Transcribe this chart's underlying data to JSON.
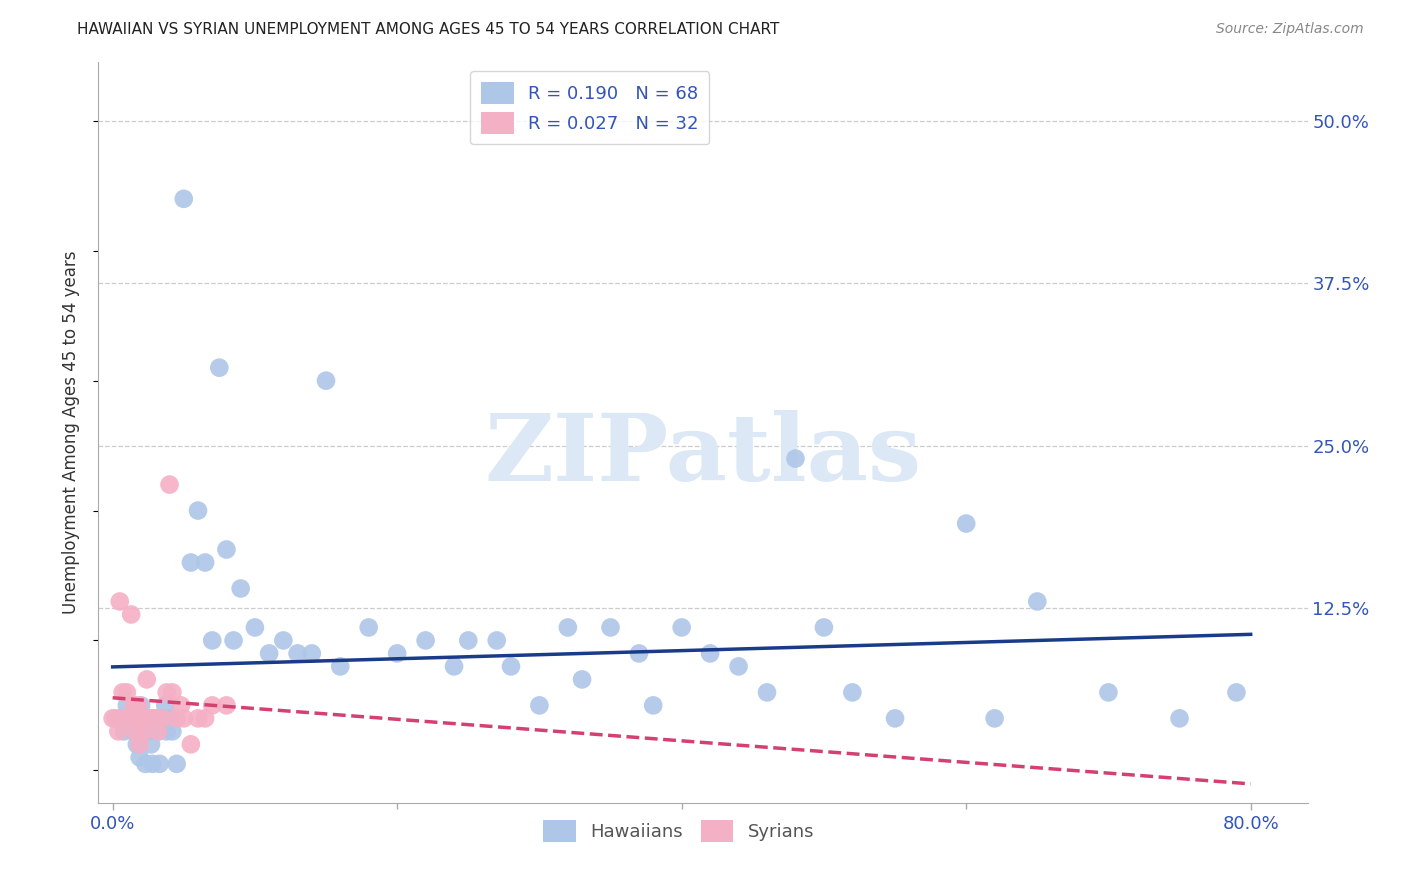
{
  "title": "HAWAIIAN VS SYRIAN UNEMPLOYMENT AMONG AGES 45 TO 54 YEARS CORRELATION CHART",
  "source": "Source: ZipAtlas.com",
  "ylabel": "Unemployment Among Ages 45 to 54 years",
  "ytick_labels": [
    "50.0%",
    "37.5%",
    "25.0%",
    "12.5%"
  ],
  "ytick_values": [
    0.5,
    0.375,
    0.25,
    0.125
  ],
  "xtick_labels": [
    "0.0%",
    "80.0%"
  ],
  "xtick_values": [
    0.0,
    0.8
  ],
  "xlim": [
    -0.01,
    0.84
  ],
  "ylim": [
    -0.025,
    0.545
  ],
  "hawaiian_R": 0.19,
  "hawaiian_N": 68,
  "syrian_R": 0.027,
  "syrian_N": 32,
  "hawaiian_color": "#aec6e8",
  "hawaiian_line_color": "#1a3a8a",
  "syrian_color": "#f4b0c4",
  "syrian_line_color": "#d44070",
  "watermark_text": "ZIPatlas",
  "watermark_color": "#dce8f5",
  "background_color": "#ffffff",
  "legend_text_color": "#3355bb",
  "hawaiian_x": [
    0.005,
    0.008,
    0.01,
    0.012,
    0.015,
    0.017,
    0.018,
    0.019,
    0.02,
    0.021,
    0.022,
    0.023,
    0.025,
    0.026,
    0.027,
    0.028,
    0.03,
    0.032,
    0.033,
    0.035,
    0.037,
    0.038,
    0.04,
    0.042,
    0.045,
    0.05,
    0.055,
    0.06,
    0.065,
    0.07,
    0.075,
    0.08,
    0.085,
    0.09,
    0.1,
    0.11,
    0.12,
    0.13,
    0.14,
    0.15,
    0.16,
    0.18,
    0.2,
    0.22,
    0.24,
    0.25,
    0.27,
    0.28,
    0.3,
    0.32,
    0.33,
    0.35,
    0.37,
    0.38,
    0.4,
    0.42,
    0.44,
    0.46,
    0.48,
    0.5,
    0.52,
    0.55,
    0.6,
    0.62,
    0.65,
    0.7,
    0.75,
    0.79
  ],
  "hawaiian_y": [
    0.04,
    0.03,
    0.05,
    0.04,
    0.03,
    0.02,
    0.045,
    0.01,
    0.05,
    0.04,
    0.03,
    0.005,
    0.04,
    0.03,
    0.02,
    0.005,
    0.04,
    0.03,
    0.005,
    0.04,
    0.05,
    0.03,
    0.04,
    0.03,
    0.005,
    0.44,
    0.16,
    0.2,
    0.16,
    0.1,
    0.31,
    0.17,
    0.1,
    0.14,
    0.11,
    0.09,
    0.1,
    0.09,
    0.09,
    0.3,
    0.08,
    0.11,
    0.09,
    0.1,
    0.08,
    0.1,
    0.1,
    0.08,
    0.05,
    0.11,
    0.07,
    0.11,
    0.09,
    0.05,
    0.11,
    0.09,
    0.08,
    0.06,
    0.24,
    0.11,
    0.06,
    0.04,
    0.19,
    0.04,
    0.13,
    0.06,
    0.04,
    0.06
  ],
  "syrian_x": [
    0.0,
    0.002,
    0.004,
    0.005,
    0.007,
    0.008,
    0.01,
    0.012,
    0.013,
    0.015,
    0.016,
    0.018,
    0.019,
    0.02,
    0.022,
    0.024,
    0.025,
    0.028,
    0.03,
    0.032,
    0.035,
    0.038,
    0.04,
    0.042,
    0.045,
    0.048,
    0.05,
    0.055,
    0.06,
    0.065,
    0.07,
    0.08
  ],
  "syrian_y": [
    0.04,
    0.04,
    0.03,
    0.13,
    0.06,
    0.04,
    0.06,
    0.04,
    0.12,
    0.05,
    0.03,
    0.05,
    0.02,
    0.04,
    0.03,
    0.07,
    0.04,
    0.04,
    0.04,
    0.03,
    0.04,
    0.06,
    0.22,
    0.06,
    0.04,
    0.05,
    0.04,
    0.02,
    0.04,
    0.04,
    0.05,
    0.05
  ]
}
